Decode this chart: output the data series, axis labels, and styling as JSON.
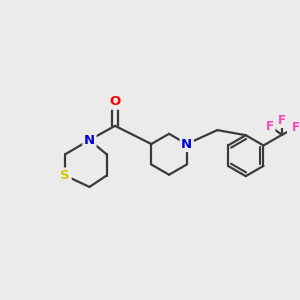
{
  "background_color": "#ebebeb",
  "bond_color": "#3a3a3a",
  "atom_colors": {
    "O": "#ff0000",
    "N": "#0000dd",
    "S": "#cccc00",
    "F": "#ff44bb",
    "C": "#3a3a3a"
  },
  "figsize": [
    3.0,
    3.0
  ],
  "dpi": 100
}
